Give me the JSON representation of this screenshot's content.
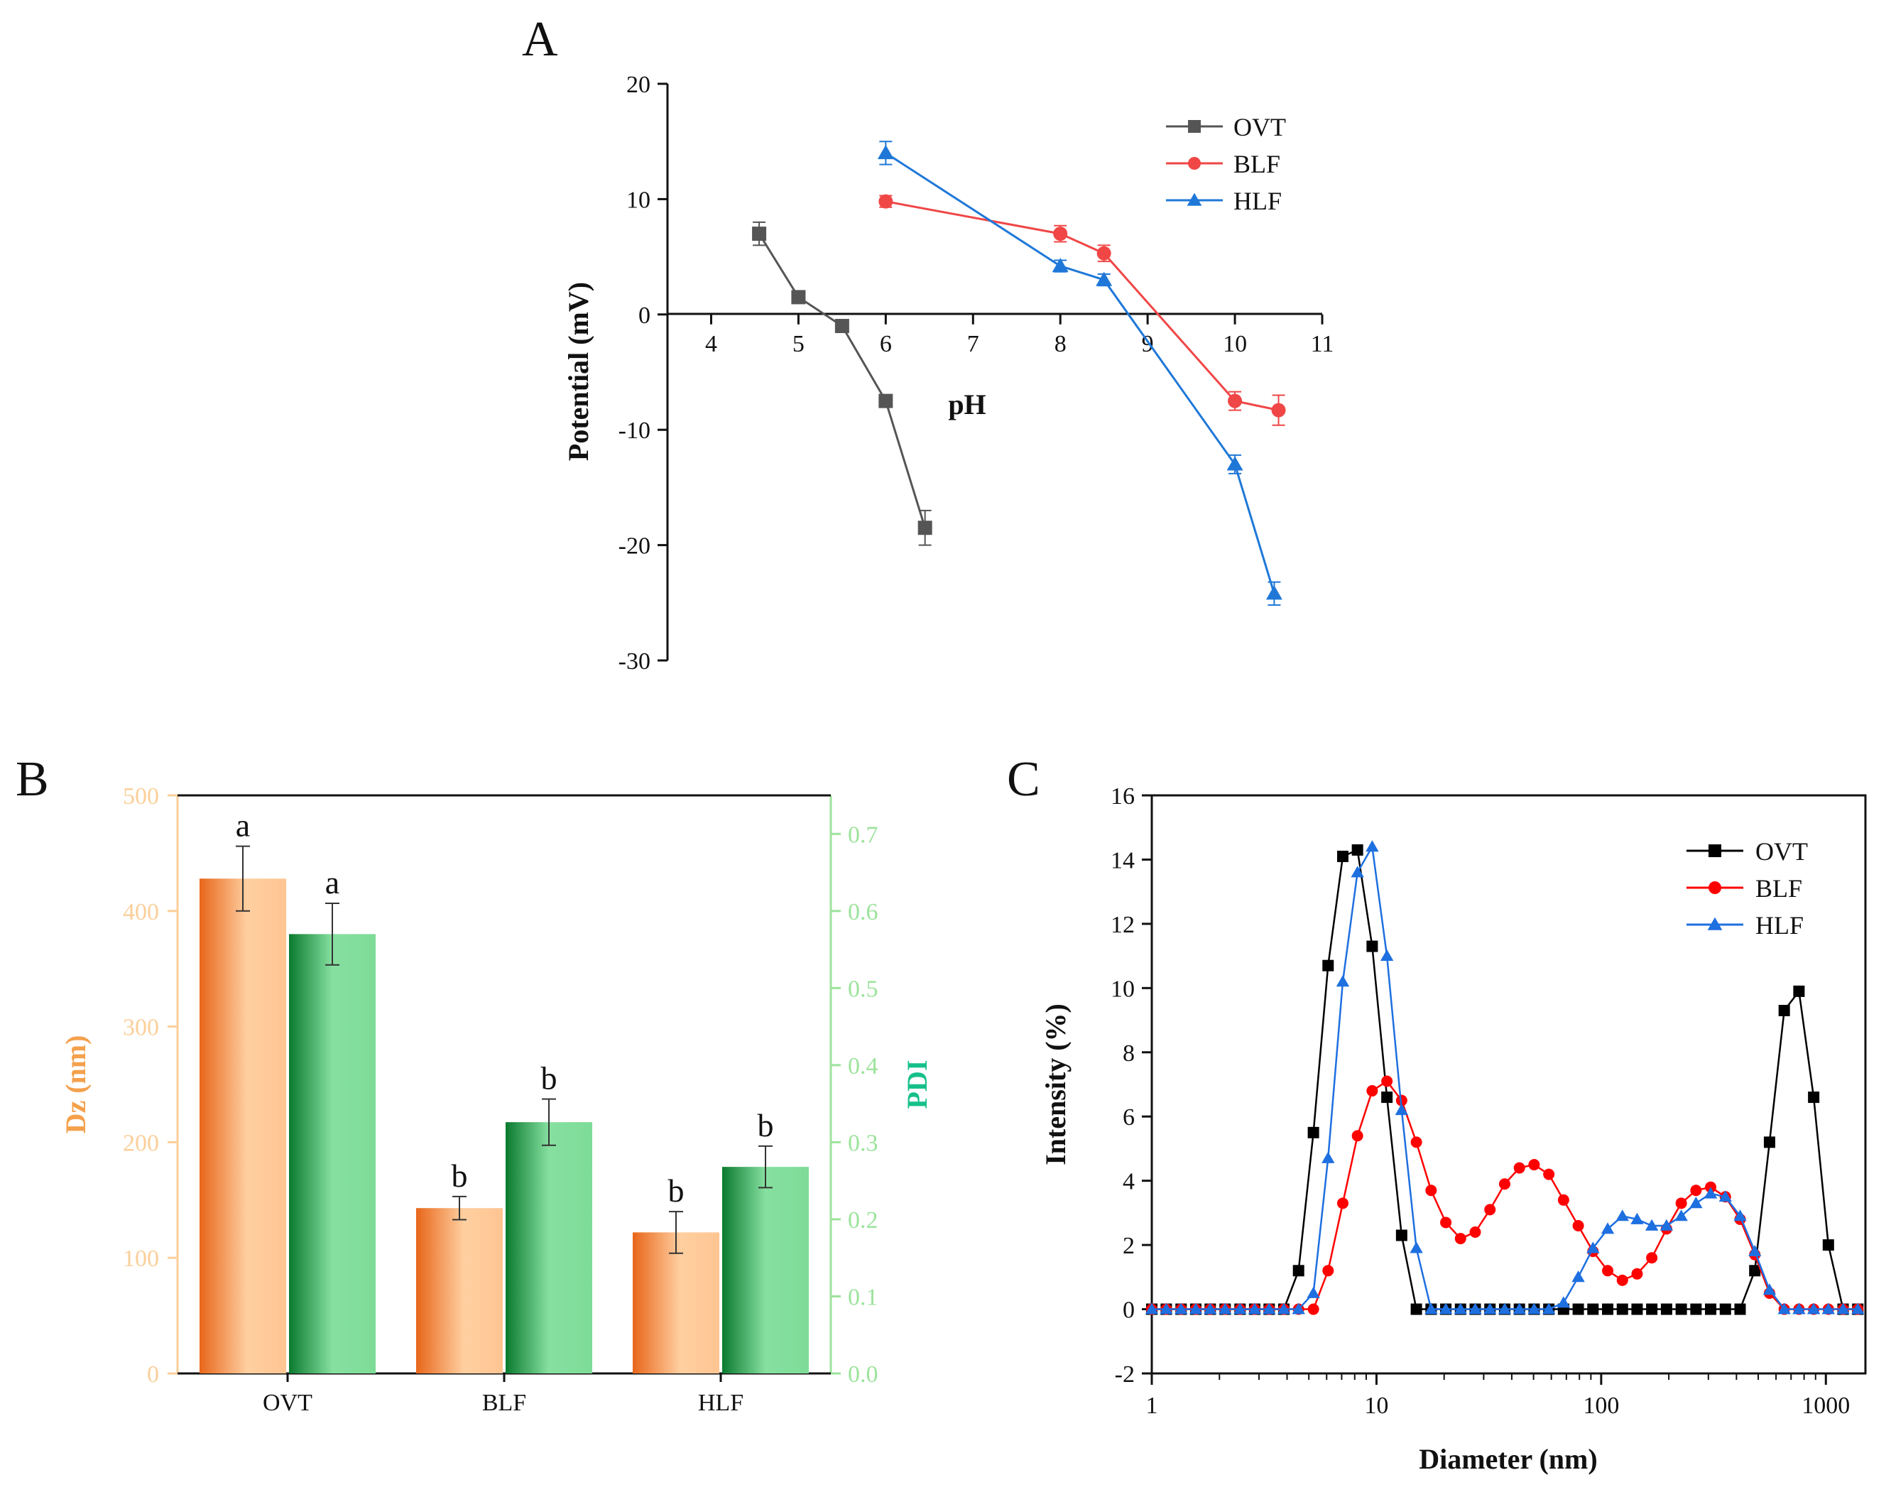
{
  "panels": {
    "a": {
      "letter": "A"
    },
    "b": {
      "letter": "B"
    },
    "c": {
      "letter": "C"
    }
  },
  "colors": {
    "ovt": "#555555",
    "blf": "#f04646",
    "hlf": "#1f78d8",
    "ovt_c": "#000000",
    "blf_c": "#ff0000",
    "hlf_c": "#1e6fe0",
    "dz_axis": "#fbcf9a",
    "pdi_axis": "#9ce39c",
    "dz_label": "#f4a04c",
    "pdi_label": "#16c08a",
    "bar_orange_dark": "#e8661a",
    "bar_orange_light": "#ffcfa0",
    "bar_green_dark": "#0a7a2e",
    "bar_green_light": "#86e0a0"
  },
  "chart_data": [
    {
      "type": "line",
      "panel": "A",
      "xlabel": "pH",
      "ylabel": "Potential (mV)",
      "xlim": [
        3.5,
        11
      ],
      "ylim": [
        -30,
        20
      ],
      "xticks": [
        4,
        5,
        6,
        7,
        8,
        9,
        10,
        11
      ],
      "yticks": [
        -30,
        -20,
        -10,
        0,
        10,
        20
      ],
      "legend": "top-right",
      "series": [
        {
          "name": "OVT",
          "marker": "square",
          "x": [
            4.55,
            5.0,
            5.5,
            6.0,
            6.45
          ],
          "y": [
            7.0,
            1.5,
            -1.0,
            -7.5,
            -18.5
          ],
          "err": [
            1.0,
            0.5,
            0.5,
            0.5,
            1.5
          ]
        },
        {
          "name": "BLF",
          "marker": "circle",
          "x": [
            6.0,
            8.0,
            8.5,
            10.0,
            10.5
          ],
          "y": [
            9.8,
            7.0,
            5.3,
            -7.5,
            -8.3
          ],
          "err": [
            0.5,
            0.7,
            0.7,
            0.8,
            1.3
          ]
        },
        {
          "name": "HLF",
          "marker": "triangle",
          "x": [
            6.0,
            8.0,
            8.5,
            10.0,
            10.45
          ],
          "y": [
            14.0,
            4.2,
            3.0,
            -13.0,
            -24.2
          ],
          "err": [
            1.0,
            0.5,
            0.5,
            0.8,
            1.0
          ]
        }
      ]
    },
    {
      "type": "bar",
      "panel": "B",
      "categories": [
        "OVT",
        "BLF",
        "HLF"
      ],
      "ylabel": "Dz (nm)",
      "y2label": "PDI",
      "ylim": [
        0,
        500
      ],
      "y2lim": [
        0,
        0.75
      ],
      "yticks": [
        0,
        100,
        200,
        300,
        400,
        500
      ],
      "y2ticks": [
        "0.0",
        "0.1",
        "0.2",
        "0.3",
        "0.4",
        "0.5",
        "0.6",
        "0.7"
      ],
      "series": [
        {
          "axis": "left",
          "values": [
            428,
            143,
            122
          ],
          "err": [
            28,
            10,
            18
          ],
          "letters": [
            "a",
            "b",
            "b"
          ]
        },
        {
          "axis": "right",
          "values": [
            0.57,
            0.326,
            0.268
          ],
          "err": [
            0.04,
            0.03,
            0.027
          ],
          "letters": [
            "a",
            "b",
            "b"
          ]
        }
      ]
    },
    {
      "type": "line",
      "panel": "C",
      "xlabel": "Diameter (nm)",
      "ylabel": "Intensity (%)",
      "xscale": "log",
      "xlim": [
        1,
        1500
      ],
      "ylim": [
        -2,
        16
      ],
      "xticks": [
        "1",
        "10",
        "100",
        "1000"
      ],
      "yticks": [
        -2,
        0,
        2,
        4,
        6,
        8,
        10,
        12,
        14,
        16
      ],
      "legend": "top-right",
      "x": [
        1.0,
        1.16,
        1.35,
        1.57,
        1.82,
        2.12,
        2.47,
        2.87,
        3.33,
        3.87,
        4.5,
        5.24,
        6.09,
        7.08,
        8.23,
        9.57,
        11.13,
        12.94,
        15.05,
        17.5,
        20.35,
        23.66,
        27.51,
        31.99,
        37.2,
        43.26,
        50.3,
        58.49,
        68.0,
        79.07,
        91.93,
        106.9,
        124.3,
        144.5,
        168.0,
        195.4,
        227.2,
        264.2,
        307.1,
        357.1,
        415.2,
        482.8,
        561.4,
        652.8,
        759.0,
        882.6,
        1026.0,
        1193.0,
        1387.0
      ],
      "series": [
        {
          "name": "OVT",
          "marker": "square",
          "y": [
            0,
            0,
            0,
            0,
            0,
            0,
            0,
            0,
            0,
            0,
            1.2,
            5.5,
            10.7,
            14.1,
            14.3,
            11.3,
            6.6,
            2.3,
            0,
            0,
            0,
            0,
            0,
            0,
            0,
            0,
            0,
            0,
            0,
            0,
            0,
            0,
            0,
            0,
            0,
            0,
            0,
            0,
            0,
            0,
            0,
            1.2,
            5.2,
            9.3,
            9.9,
            6.6,
            2.0,
            0,
            0
          ]
        },
        {
          "name": "BLF",
          "marker": "circle",
          "y": [
            0,
            0,
            0,
            0,
            0,
            0,
            0,
            0,
            0,
            0,
            0,
            0,
            1.2,
            3.3,
            5.4,
            6.8,
            7.1,
            6.5,
            5.2,
            3.7,
            2.7,
            2.2,
            2.4,
            3.1,
            3.9,
            4.4,
            4.5,
            4.2,
            3.4,
            2.6,
            1.8,
            1.2,
            0.9,
            1.1,
            1.6,
            2.5,
            3.3,
            3.7,
            3.8,
            3.5,
            2.8,
            1.7,
            0.5,
            0,
            0,
            0,
            0,
            0,
            0
          ]
        },
        {
          "name": "HLF",
          "marker": "triangle",
          "y": [
            0,
            0,
            0,
            0,
            0,
            0,
            0,
            0,
            0,
            0,
            0,
            0.5,
            4.7,
            10.2,
            13.6,
            14.4,
            11.0,
            6.2,
            1.9,
            0,
            0,
            0,
            0,
            0,
            0,
            0,
            0,
            0,
            0.2,
            1.0,
            1.9,
            2.5,
            2.9,
            2.8,
            2.6,
            2.6,
            2.9,
            3.3,
            3.6,
            3.5,
            2.9,
            1.8,
            0.6,
            0,
            0,
            0,
            0,
            0,
            0
          ]
        }
      ]
    }
  ]
}
